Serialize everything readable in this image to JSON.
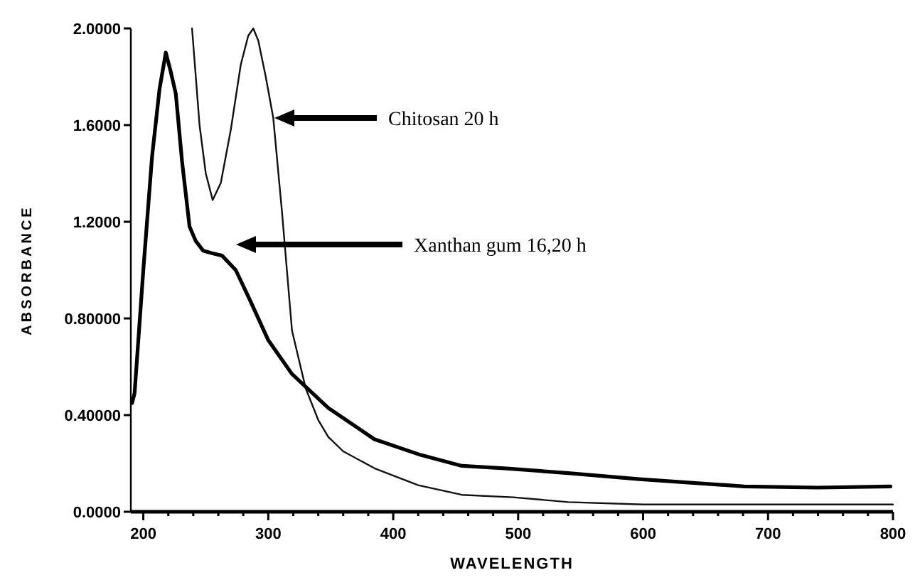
{
  "chart_data": {
    "type": "line",
    "xlabel": "WAVELENGTH",
    "ylabel": "ABSORBANCE",
    "xlim": [
      190,
      800
    ],
    "ylim": [
      0,
      2
    ],
    "xticks": [
      200,
      {
        "value": 220,
        "label": null
      },
      {
        "value": 240,
        "label": null
      },
      {
        "value": 260,
        "label": null
      },
      {
        "value": 280,
        "label": null
      },
      300,
      {
        "value": 320,
        "label": null
      },
      {
        "value": 340,
        "label": null
      },
      {
        "value": 360,
        "label": null
      },
      {
        "value": 380,
        "label": null
      },
      400,
      {
        "value": 420,
        "label": null
      },
      {
        "value": 440,
        "label": null
      },
      {
        "value": 460,
        "label": null
      },
      {
        "value": 480,
        "label": null
      },
      500,
      {
        "value": 520,
        "label": null
      },
      {
        "value": 540,
        "label": null
      },
      {
        "value": 560,
        "label": null
      },
      {
        "value": 580,
        "label": null
      },
      600,
      {
        "value": 620,
        "label": null
      },
      {
        "value": 640,
        "label": null
      },
      {
        "value": 660,
        "label": null
      },
      {
        "value": 680,
        "label": null
      },
      700,
      {
        "value": 720,
        "label": null
      },
      {
        "value": 740,
        "label": null
      },
      {
        "value": 760,
        "label": null
      },
      {
        "value": 780,
        "label": null
      },
      800
    ],
    "yticks": [
      {
        "value": 0,
        "label": "0.0000"
      },
      {
        "value": 0.4,
        "label": "0.40000"
      },
      {
        "value": 0.8,
        "label": "0.80000"
      },
      {
        "value": 1.2,
        "label": "1.2000"
      },
      {
        "value": 1.6,
        "label": "1.6000"
      },
      {
        "value": 2,
        "label": "2.0000"
      }
    ],
    "grid": false,
    "marker": "none",
    "line_style": "solid",
    "series": [
      {
        "color": "#111111",
        "x": [
          239,
          245,
          250,
          255.5,
          262,
          270,
          278,
          284,
          288,
          292,
          298,
          304,
          311,
          319,
          330,
          340,
          348,
          360,
          385,
          420,
          455,
          496,
          540,
          600,
          700,
          800
        ],
        "values": [
          2.0,
          1.6,
          1.4,
          1.29,
          1.36,
          1.58,
          1.85,
          1.97,
          2.0,
          1.95,
          1.8,
          1.63,
          1.24,
          0.75,
          0.51,
          0.38,
          0.31,
          0.25,
          0.18,
          0.11,
          0.07,
          0.06,
          0.04,
          0.03,
          0.03,
          0.03
        ]
      },
      {
        "color": "#000000",
        "x": [
          191,
          193,
          200,
          207,
          213,
          218,
          222,
          226,
          231,
          237,
          242,
          248,
          255,
          263,
          274,
          285,
          300,
          319,
          348,
          385,
          422,
          455,
          489,
          540,
          597,
          681,
          740,
          798
        ],
        "values": [
          0.45,
          0.49,
          1.0,
          1.47,
          1.75,
          1.9,
          1.82,
          1.73,
          1.45,
          1.18,
          1.12,
          1.08,
          1.07,
          1.06,
          1.0,
          0.88,
          0.71,
          0.57,
          0.43,
          0.3,
          0.235,
          0.19,
          0.18,
          0.16,
          0.135,
          0.105,
          0.1,
          0.105
        ]
      }
    ],
    "annotations": [
      "Chitosan 20 h",
      "Xanthan gum 16,20 h"
    ]
  }
}
